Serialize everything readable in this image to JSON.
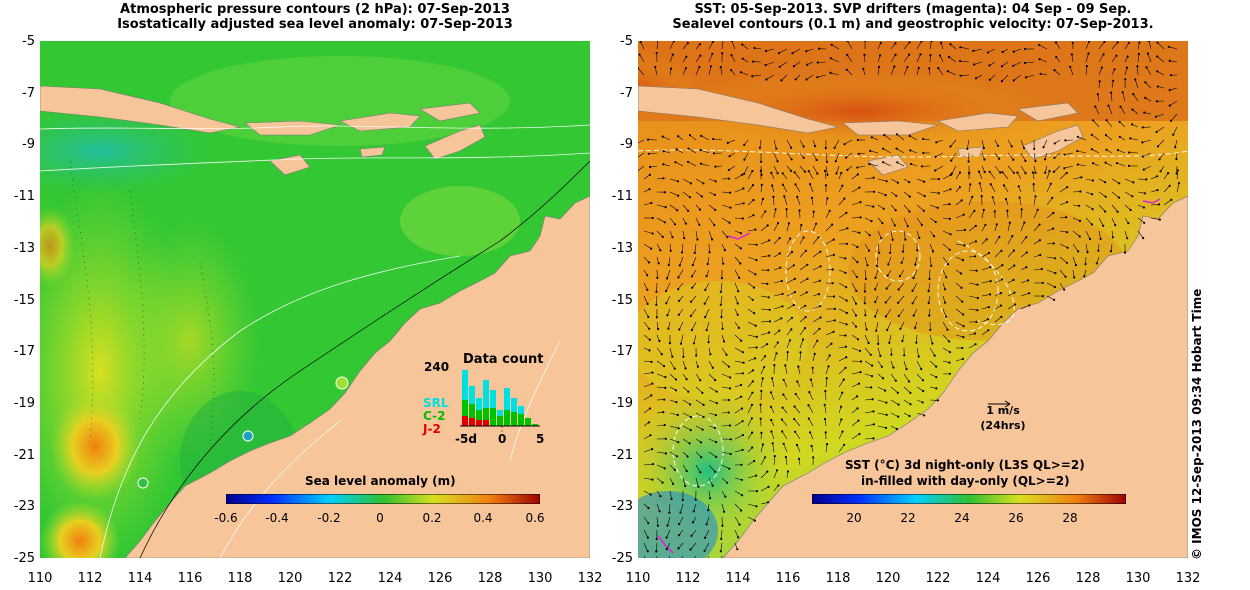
{
  "left_panel": {
    "title_line1": "Atmospheric pressure contours (2 hPa): 07-Sep-2013",
    "title_line2": "Isostatically adjusted sea level anomaly: 07-Sep-2013",
    "colorbar_label": "Sea level anomaly (m)",
    "colorbar_ticks": [
      "-0.6",
      "-0.4",
      "-0.2",
      "0",
      "0.2",
      "0.4",
      "0.6"
    ],
    "inset": {
      "title": "Data count",
      "ymax_label": "240",
      "sensors": [
        "SRL",
        "C-2",
        "J-2"
      ],
      "sensor_colors": [
        "#00e0e0",
        "#00c000",
        "#e00000"
      ],
      "x_ticks": [
        "-5d",
        "0",
        "5"
      ]
    }
  },
  "right_panel": {
    "title_line1": "SST: 05-Sep-2013. SVP drifters (magenta): 04 Sep - 09 Sep.",
    "title_line2": "Sealevel contours (0.1 m) and geostrophic velocity: 07-Sep-2013.",
    "colorbar_label_line1": "SST (°C)  3d night-only (L3S QL>=2)",
    "colorbar_label_line2": "in-filled with day-only (QL>=2)",
    "colorbar_ticks": [
      "20",
      "22",
      "24",
      "26",
      "28"
    ],
    "vector_scale_label": "1 m/s",
    "vector_scale_sublabel": "(24hrs)"
  },
  "y_ticks": [
    "-5",
    "-7",
    "-9",
    "-11",
    "-13",
    "-15",
    "-17",
    "-19",
    "-21",
    "-23",
    "-25"
  ],
  "x_ticks": [
    "110",
    "112",
    "114",
    "116",
    "118",
    "120",
    "122",
    "124",
    "126",
    "128",
    "130",
    "132"
  ],
  "credit": "© IMOS 12-Sep-2013 09:34 Hobart Time",
  "colors": {
    "land": "#f7c59a",
    "sea_green": "#33cc33",
    "sst_orange": "#f0a020"
  }
}
